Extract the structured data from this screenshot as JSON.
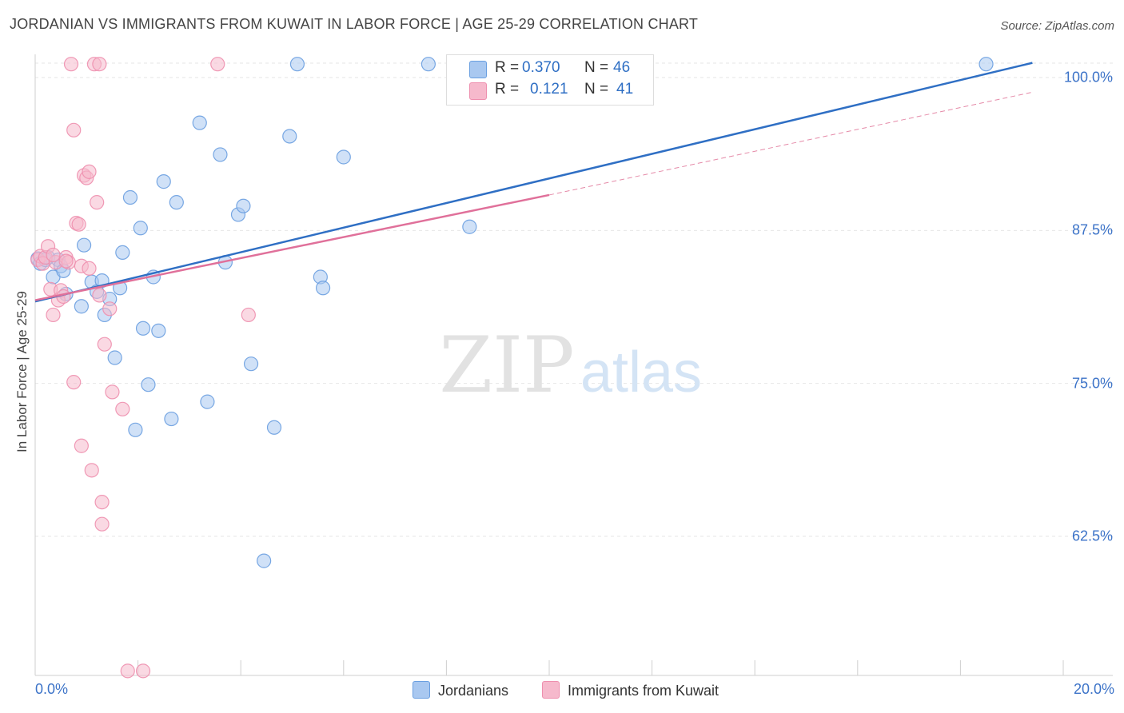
{
  "title": "JORDANIAN VS IMMIGRANTS FROM KUWAIT IN LABOR FORCE | AGE 25-29 CORRELATION CHART",
  "source": "Source: ZipAtlas.com",
  "watermark": {
    "zip": "ZIP",
    "atlas": "atlas"
  },
  "legend": {
    "rows": [
      {
        "r_label": "R =",
        "r_value": "0.370",
        "n_label": "N =",
        "n_value": "46",
        "color": "#a9c8f0"
      },
      {
        "r_label": "R =",
        "r_value": "0.121",
        "n_label": "N =",
        "n_value": "41",
        "color": "#f6b9cc"
      }
    ]
  },
  "chart_data": {
    "type": "scatter",
    "title": "JORDANIAN VS IMMIGRANTS FROM KUWAIT IN LABOR FORCE | AGE 25-29 CORRELATION CHART",
    "xlabel": "",
    "ylabel": "In Labor Force | Age 25-29",
    "xlim": [
      0,
      20
    ],
    "ylim": [
      50,
      101.2
    ],
    "x_tick_labels": [
      "0.0%",
      "20.0%"
    ],
    "y_ticks": [
      62.5,
      75.0,
      87.5,
      100.0
    ],
    "y_tick_labels": [
      "62.5%",
      "75.0%",
      "87.5%",
      "100.0%"
    ],
    "grid": true,
    "series": [
      {
        "name": "Jordanians",
        "color": "#6a9fe0",
        "fill": "#a9c8f0",
        "trend": {
          "x": [
            0,
            19.4
          ],
          "y": [
            81.7,
            101.2
          ],
          "color": "#2f6fc4",
          "dashed": false
        },
        "points": [
          [
            0.05,
            85.2
          ],
          [
            0.1,
            84.8
          ],
          [
            0.2,
            85.1
          ],
          [
            0.25,
            85.3
          ],
          [
            0.35,
            83.7
          ],
          [
            0.45,
            85.1
          ],
          [
            0.5,
            84.6
          ],
          [
            0.55,
            84.2
          ],
          [
            0.6,
            82.3
          ],
          [
            0.9,
            81.3
          ],
          [
            0.95,
            86.3
          ],
          [
            1.1,
            83.3
          ],
          [
            1.2,
            82.5
          ],
          [
            1.3,
            83.4
          ],
          [
            1.35,
            80.6
          ],
          [
            1.45,
            81.9
          ],
          [
            1.55,
            77.1
          ],
          [
            1.65,
            82.8
          ],
          [
            1.7,
            85.7
          ],
          [
            1.85,
            90.2
          ],
          [
            1.95,
            71.2
          ],
          [
            2.05,
            87.7
          ],
          [
            2.1,
            79.5
          ],
          [
            2.2,
            74.9
          ],
          [
            2.3,
            83.7
          ],
          [
            2.4,
            79.3
          ],
          [
            2.5,
            91.5
          ],
          [
            2.65,
            72.1
          ],
          [
            2.75,
            89.8
          ],
          [
            3.2,
            96.3
          ],
          [
            3.35,
            73.5
          ],
          [
            3.6,
            93.7
          ],
          [
            3.7,
            84.9
          ],
          [
            3.95,
            88.8
          ],
          [
            4.05,
            89.5
          ],
          [
            4.2,
            76.6
          ],
          [
            4.45,
            60.5
          ],
          [
            4.65,
            71.4
          ],
          [
            4.95,
            95.2
          ],
          [
            5.1,
            101.1
          ],
          [
            5.55,
            83.7
          ],
          [
            5.6,
            82.8
          ],
          [
            6.0,
            93.5
          ],
          [
            7.65,
            101.1
          ],
          [
            8.45,
            87.8
          ],
          [
            18.5,
            101.1
          ]
        ]
      },
      {
        "name": "Immigrants from Kuwait",
        "color": "#ee8fae",
        "fill": "#f6b9cc",
        "trend": {
          "x": [
            0,
            10
          ],
          "y": [
            81.8,
            90.4
          ],
          "color": "#e0709a",
          "dashed": false
        },
        "trend_ext": {
          "x": [
            10,
            19.4
          ],
          "y": [
            90.4,
            98.8
          ],
          "color": "#e58aa8",
          "dashed": true
        },
        "points": [
          [
            0.05,
            85.1
          ],
          [
            0.1,
            85.4
          ],
          [
            0.15,
            84.8
          ],
          [
            0.2,
            85.3
          ],
          [
            0.25,
            86.2
          ],
          [
            0.3,
            82.7
          ],
          [
            0.35,
            80.6
          ],
          [
            0.4,
            84.9
          ],
          [
            0.45,
            81.8
          ],
          [
            0.5,
            82.6
          ],
          [
            0.55,
            82.1
          ],
          [
            0.6,
            85.3
          ],
          [
            0.65,
            84.9
          ],
          [
            0.7,
            101.1
          ],
          [
            0.75,
            95.7
          ],
          [
            0.75,
            75.1
          ],
          [
            0.8,
            88.1
          ],
          [
            0.85,
            88.0
          ],
          [
            0.9,
            69.9
          ],
          [
            0.95,
            92.0
          ],
          [
            1.0,
            91.8
          ],
          [
            1.05,
            92.3
          ],
          [
            1.1,
            67.9
          ],
          [
            1.15,
            101.1
          ],
          [
            1.2,
            89.8
          ],
          [
            1.25,
            82.2
          ],
          [
            1.25,
            101.1
          ],
          [
            1.3,
            65.3
          ],
          [
            1.3,
            63.5
          ],
          [
            1.35,
            78.2
          ],
          [
            1.45,
            81.1
          ],
          [
            1.5,
            74.3
          ],
          [
            1.7,
            72.9
          ],
          [
            1.8,
            51.5
          ],
          [
            2.1,
            51.5
          ],
          [
            3.55,
            101.1
          ],
          [
            4.15,
            80.6
          ],
          [
            0.9,
            84.6
          ],
          [
            0.6,
            85.0
          ],
          [
            1.05,
            84.4
          ],
          [
            0.35,
            85.5
          ]
        ]
      }
    ]
  }
}
